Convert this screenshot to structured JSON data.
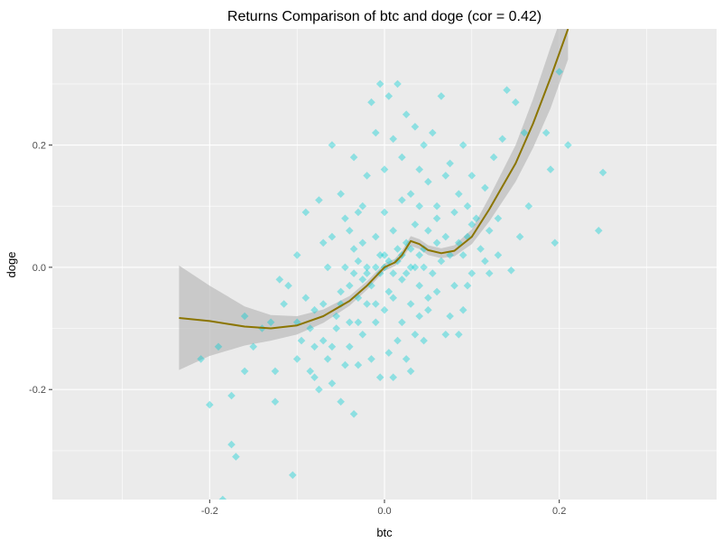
{
  "chart_data": {
    "type": "scatter",
    "title": "Returns Comparison of btc and doge (cor = 0.42)",
    "xlabel": "btc",
    "ylabel": "doge",
    "xlim": [
      -0.38,
      0.38
    ],
    "ylim": [
      -0.38,
      0.39
    ],
    "x_ticks": [
      {
        "value": -0.2,
        "label": "-0.2"
      },
      {
        "value": 0.0,
        "label": "0.0"
      },
      {
        "value": 0.2,
        "label": "0.2"
      }
    ],
    "y_ticks": [
      {
        "value": -0.2,
        "label": "-0.2"
      },
      {
        "value": 0.0,
        "label": "0.0"
      },
      {
        "value": 0.2,
        "label": "0.2"
      }
    ],
    "x_minor": [
      -0.3,
      -0.1,
      0.1,
      0.3
    ],
    "y_minor": [
      -0.3,
      -0.1,
      0.1,
      0.3
    ],
    "grid": true,
    "colors": {
      "panel": "#ebebeb",
      "grid": "#ffffff",
      "points": "#00ced1",
      "smooth_line": "#8b7500",
      "ribbon": "#bdbdbd"
    },
    "marker": "diamond",
    "series": [
      {
        "type": "scatter",
        "points": [
          [
            -0.185,
            -0.38
          ],
          [
            -0.175,
            -0.29
          ],
          [
            -0.17,
            -0.31
          ],
          [
            -0.2,
            -0.225
          ],
          [
            -0.175,
            -0.21
          ],
          [
            -0.21,
            -0.15
          ],
          [
            -0.19,
            -0.13
          ],
          [
            -0.16,
            -0.17
          ],
          [
            -0.15,
            -0.13
          ],
          [
            -0.125,
            -0.17
          ],
          [
            -0.125,
            -0.22
          ],
          [
            -0.105,
            -0.34
          ],
          [
            -0.115,
            -0.06
          ],
          [
            -0.11,
            -0.03
          ],
          [
            -0.1,
            -0.09
          ],
          [
            -0.09,
            -0.05
          ],
          [
            -0.085,
            -0.17
          ],
          [
            -0.08,
            -0.18
          ],
          [
            -0.08,
            -0.13
          ],
          [
            -0.075,
            -0.2
          ],
          [
            -0.07,
            -0.12
          ],
          [
            -0.07,
            -0.06
          ],
          [
            -0.065,
            -0.15
          ],
          [
            -0.06,
            -0.19
          ],
          [
            -0.055,
            -0.1
          ],
          [
            -0.055,
            -0.08
          ],
          [
            -0.05,
            -0.04
          ],
          [
            -0.05,
            -0.22
          ],
          [
            -0.045,
            -0.16
          ],
          [
            -0.04,
            -0.13
          ],
          [
            -0.035,
            -0.24
          ],
          [
            -0.03,
            -0.09
          ],
          [
            -0.03,
            -0.16
          ],
          [
            -0.025,
            -0.11
          ],
          [
            -0.02,
            -0.06
          ],
          [
            -0.015,
            -0.15
          ],
          [
            -0.01,
            -0.09
          ],
          [
            -0.005,
            -0.18
          ],
          [
            0.0,
            -0.07
          ],
          [
            0.005,
            -0.14
          ],
          [
            0.01,
            -0.18
          ],
          [
            0.015,
            -0.12
          ],
          [
            0.02,
            -0.09
          ],
          [
            0.025,
            -0.15
          ],
          [
            0.03,
            -0.17
          ],
          [
            0.035,
            -0.11
          ],
          [
            0.04,
            -0.08
          ],
          [
            0.045,
            -0.12
          ],
          [
            0.05,
            -0.05
          ],
          [
            0.06,
            -0.04
          ],
          [
            0.07,
            -0.11
          ],
          [
            0.075,
            -0.08
          ],
          [
            0.085,
            -0.11
          ],
          [
            0.09,
            -0.07
          ],
          [
            0.095,
            -0.03
          ],
          [
            0.1,
            -0.01
          ],
          [
            0.115,
            0.01
          ],
          [
            0.12,
            -0.01
          ],
          [
            0.145,
            -0.005
          ],
          [
            -0.09,
            0.09
          ],
          [
            -0.075,
            0.11
          ],
          [
            -0.06,
            0.2
          ],
          [
            -0.05,
            0.12
          ],
          [
            -0.04,
            0.06
          ],
          [
            -0.035,
            0.18
          ],
          [
            -0.03,
            0.09
          ],
          [
            -0.02,
            0.15
          ],
          [
            -0.015,
            0.27
          ],
          [
            -0.01,
            0.22
          ],
          [
            -0.005,
            0.3
          ],
          [
            0.0,
            0.16
          ],
          [
            0.005,
            0.28
          ],
          [
            0.01,
            0.21
          ],
          [
            0.015,
            0.3
          ],
          [
            0.02,
            0.18
          ],
          [
            0.025,
            0.25
          ],
          [
            0.03,
            0.12
          ],
          [
            0.035,
            0.23
          ],
          [
            0.04,
            0.16
          ],
          [
            0.045,
            0.2
          ],
          [
            0.05,
            0.14
          ],
          [
            0.055,
            0.22
          ],
          [
            0.06,
            0.1
          ],
          [
            0.065,
            0.28
          ],
          [
            0.07,
            0.15
          ],
          [
            0.075,
            0.17
          ],
          [
            0.085,
            0.12
          ],
          [
            0.09,
            0.2
          ],
          [
            0.095,
            0.1
          ],
          [
            0.1,
            0.15
          ],
          [
            0.105,
            0.08
          ],
          [
            0.115,
            0.13
          ],
          [
            0.125,
            0.18
          ],
          [
            0.13,
            0.08
          ],
          [
            0.135,
            0.21
          ],
          [
            0.14,
            0.29
          ],
          [
            0.15,
            0.27
          ],
          [
            0.155,
            0.05
          ],
          [
            0.16,
            0.22
          ],
          [
            0.165,
            0.1
          ],
          [
            0.185,
            0.22
          ],
          [
            0.19,
            0.16
          ],
          [
            0.195,
            0.04
          ],
          [
            0.2,
            0.32
          ],
          [
            0.245,
            0.06
          ],
          [
            0.25,
            0.155
          ],
          [
            0.21,
            0.2
          ],
          [
            -0.12,
            -0.02
          ],
          [
            -0.1,
            0.02
          ],
          [
            -0.08,
            -0.07
          ],
          [
            -0.065,
            0.0
          ],
          [
            -0.06,
            0.05
          ],
          [
            -0.04,
            -0.03
          ],
          [
            -0.035,
            0.03
          ],
          [
            -0.03,
            -0.05
          ],
          [
            -0.025,
            0.04
          ],
          [
            -0.02,
            0.0
          ],
          [
            -0.015,
            -0.03
          ],
          [
            -0.01,
            0.05
          ],
          [
            -0.005,
            -0.01
          ],
          [
            0.0,
            0.02
          ],
          [
            0.005,
            -0.04
          ],
          [
            0.01,
            0.06
          ],
          [
            0.015,
            0.01
          ],
          [
            0.02,
            -0.02
          ],
          [
            0.025,
            0.04
          ],
          [
            0.03,
            0.0
          ],
          [
            0.035,
            0.07
          ],
          [
            0.04,
            -0.03
          ],
          [
            0.045,
            0.03
          ],
          [
            0.05,
            0.06
          ],
          [
            0.055,
            -0.01
          ],
          [
            0.06,
            0.04
          ],
          [
            0.065,
            0.01
          ],
          [
            0.07,
            0.05
          ],
          [
            0.075,
            0.02
          ],
          [
            0.08,
            -0.03
          ],
          [
            0.085,
            0.04
          ],
          [
            0.09,
            0.02
          ],
          [
            0.095,
            0.05
          ],
          [
            0.1,
            0.07
          ],
          [
            0.11,
            0.03
          ],
          [
            0.12,
            0.06
          ],
          [
            0.13,
            0.02
          ],
          [
            -0.045,
            0.08
          ],
          [
            -0.025,
            0.1
          ],
          [
            0.0,
            0.09
          ],
          [
            0.02,
            0.11
          ],
          [
            0.04,
            0.1
          ],
          [
            0.06,
            0.08
          ],
          [
            0.08,
            0.09
          ],
          [
            -0.07,
            0.04
          ],
          [
            -0.05,
            -0.06
          ],
          [
            -0.045,
            0.0
          ],
          [
            -0.01,
            -0.06
          ],
          [
            0.01,
            -0.05
          ],
          [
            0.03,
            -0.06
          ],
          [
            0.05,
            -0.07
          ],
          [
            -0.085,
            -0.1
          ],
          [
            -0.095,
            -0.12
          ],
          [
            -0.1,
            -0.15
          ],
          [
            -0.13,
            -0.09
          ],
          [
            -0.14,
            -0.1
          ],
          [
            -0.16,
            -0.08
          ],
          [
            -0.06,
            -0.13
          ],
          [
            -0.04,
            -0.09
          ],
          [
            0.0,
            0.0
          ],
          [
            0.005,
            0.01
          ],
          [
            -0.005,
            0.02
          ],
          [
            0.01,
            -0.01
          ],
          [
            -0.01,
            0.0
          ],
          [
            0.015,
            0.03
          ],
          [
            0.02,
            0.02
          ],
          [
            -0.02,
            -0.01
          ],
          [
            0.025,
            -0.01
          ],
          [
            -0.025,
            -0.02
          ],
          [
            0.03,
            0.03
          ],
          [
            0.035,
            0.0
          ],
          [
            0.04,
            0.02
          ],
          [
            -0.03,
            0.01
          ],
          [
            -0.035,
            -0.01
          ],
          [
            0.045,
            0.0
          ]
        ]
      },
      {
        "type": "smooth",
        "points": [
          [
            -0.235,
            -0.083
          ],
          [
            -0.2,
            -0.088
          ],
          [
            -0.16,
            -0.097
          ],
          [
            -0.13,
            -0.1
          ],
          [
            -0.1,
            -0.095
          ],
          [
            -0.07,
            -0.08
          ],
          [
            -0.04,
            -0.055
          ],
          [
            -0.02,
            -0.03
          ],
          [
            0.0,
            0.0
          ],
          [
            0.012,
            0.008
          ],
          [
            0.02,
            0.02
          ],
          [
            0.03,
            0.043
          ],
          [
            0.04,
            0.038
          ],
          [
            0.05,
            0.028
          ],
          [
            0.065,
            0.023
          ],
          [
            0.08,
            0.027
          ],
          [
            0.1,
            0.05
          ],
          [
            0.12,
            0.095
          ],
          [
            0.15,
            0.17
          ],
          [
            0.17,
            0.235
          ],
          [
            0.19,
            0.31
          ],
          [
            0.2,
            0.35
          ],
          [
            0.21,
            0.39
          ]
        ]
      },
      {
        "type": "ribbon",
        "points": [
          [
            -0.235,
            0.003,
            -0.168
          ],
          [
            -0.2,
            -0.03,
            -0.145
          ],
          [
            -0.16,
            -0.064,
            -0.128
          ],
          [
            -0.13,
            -0.078,
            -0.12
          ],
          [
            -0.1,
            -0.08,
            -0.11
          ],
          [
            -0.07,
            -0.069,
            -0.091
          ],
          [
            -0.04,
            -0.047,
            -0.063
          ],
          [
            -0.02,
            -0.023,
            -0.037
          ],
          [
            0.0,
            0.006,
            -0.006
          ],
          [
            0.012,
            0.014,
            0.002
          ],
          [
            0.02,
            0.027,
            0.013
          ],
          [
            0.03,
            0.051,
            0.035
          ],
          [
            0.04,
            0.046,
            0.03
          ],
          [
            0.05,
            0.036,
            0.02
          ],
          [
            0.065,
            0.031,
            0.015
          ],
          [
            0.08,
            0.036,
            0.018
          ],
          [
            0.1,
            0.062,
            0.038
          ],
          [
            0.12,
            0.115,
            0.075
          ],
          [
            0.15,
            0.2,
            0.14
          ],
          [
            0.17,
            0.275,
            0.195
          ],
          [
            0.19,
            0.36,
            0.26
          ],
          [
            0.2,
            0.4,
            0.3
          ],
          [
            0.21,
            0.44,
            0.34
          ]
        ]
      }
    ]
  }
}
